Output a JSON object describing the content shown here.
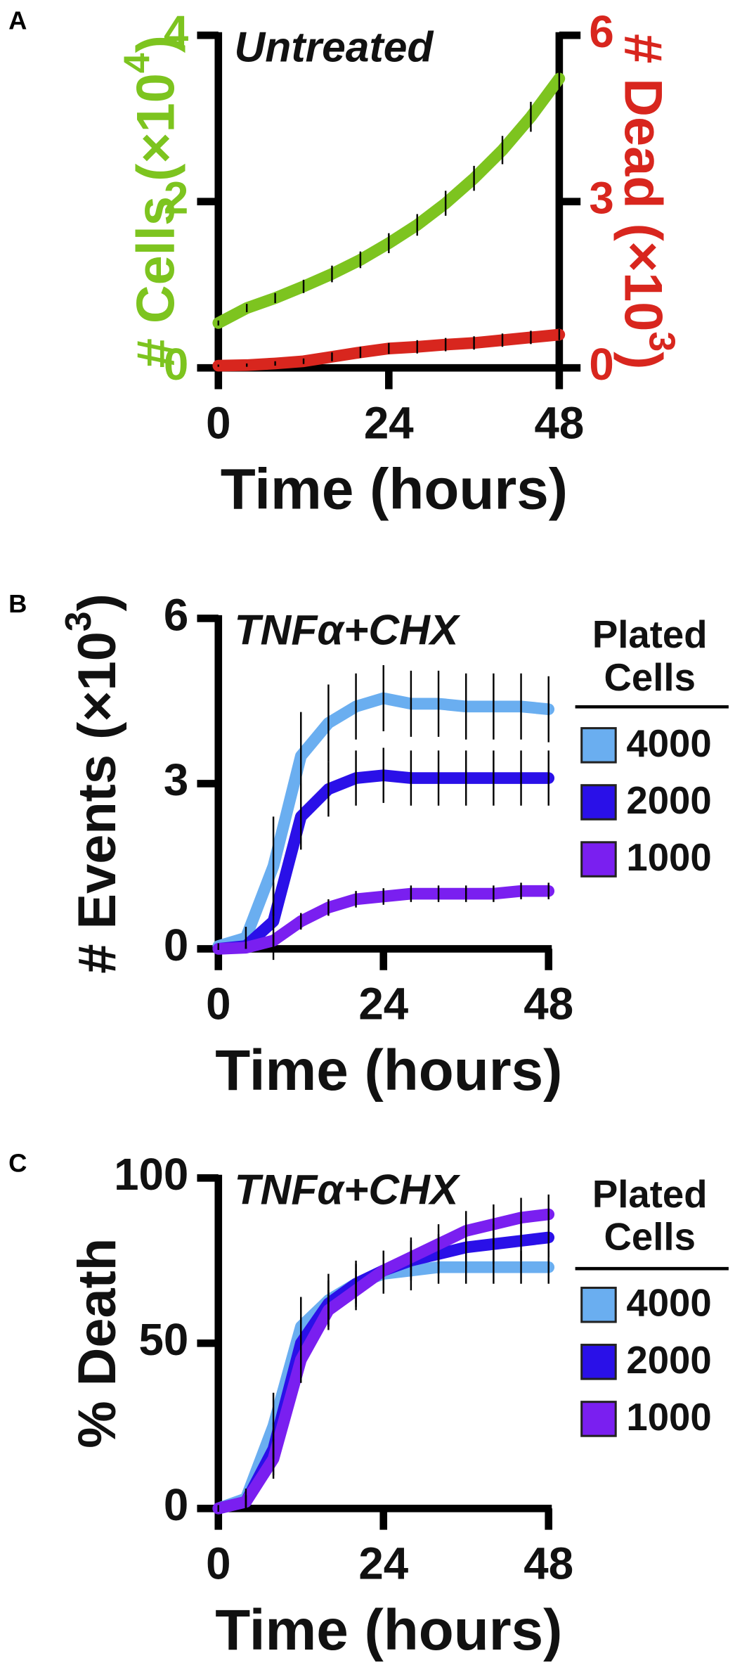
{
  "chart_data": [
    {
      "type": "line",
      "panel_label": "A",
      "title": "Untreated",
      "x": [
        0,
        4,
        8,
        12,
        16,
        20,
        24,
        28,
        32,
        36,
        40,
        44,
        48
      ],
      "xlim": [
        0,
        48
      ],
      "xticks": [
        0,
        24,
        48
      ],
      "xlabel": "Time (hours)",
      "ylim": [
        0,
        4
      ],
      "yticks": [
        0,
        2,
        4
      ],
      "ylabel": {
        "text": "# Cells (×10",
        "sup": "4",
        "end": ")"
      },
      "ycolor": "#7dc41f",
      "y2lim": [
        0,
        6
      ],
      "y2ticks": [
        0,
        3,
        6
      ],
      "y2label": {
        "text": "# Dead (×10",
        "sup": "3",
        "end": ")"
      },
      "y2color": "#d8261e",
      "series": [
        {
          "color": "#7dc41f",
          "values": [
            0.54,
            0.72,
            0.84,
            0.98,
            1.13,
            1.3,
            1.5,
            1.72,
            1.98,
            2.28,
            2.62,
            3.02,
            3.48
          ],
          "errors": [
            0.03,
            0.05,
            0.06,
            0.08,
            0.1,
            0.1,
            0.12,
            0.13,
            0.15,
            0.15,
            0.17,
            0.18,
            0.2
          ]
        },
        {
          "color": "#d8261e",
          "axis": "y2",
          "values": [
            0.04,
            0.05,
            0.08,
            0.12,
            0.2,
            0.28,
            0.35,
            0.38,
            0.42,
            0.45,
            0.5,
            0.55,
            0.6
          ],
          "errors": [
            0.02,
            0.03,
            0.04,
            0.05,
            0.08,
            0.1,
            0.1,
            0.12,
            0.12,
            0.12,
            0.12,
            0.12,
            0.1
          ]
        }
      ]
    },
    {
      "type": "line",
      "panel_label": "B",
      "title": "TNFα+CHX",
      "x": [
        0,
        4,
        8,
        12,
        16,
        20,
        24,
        28,
        32,
        36,
        40,
        44,
        48
      ],
      "xlim": [
        0,
        48
      ],
      "xticks": [
        0,
        24,
        48
      ],
      "xlabel": "Time (hours)",
      "ylim": [
        0,
        6
      ],
      "yticks": [
        0,
        3,
        6
      ],
      "ylabel": {
        "text": "# Events (×10",
        "sup": "3",
        "end": ")"
      },
      "legend_title": [
        "Plated",
        "Cells"
      ],
      "series": [
        {
          "name": "4000",
          "color": "#6aaef0",
          "values": [
            0.05,
            0.2,
            1.5,
            3.5,
            4.1,
            4.4,
            4.55,
            4.45,
            4.45,
            4.4,
            4.4,
            4.4,
            4.35
          ],
          "errors": [
            0.05,
            0.2,
            0.9,
            0.8,
            0.7,
            0.6,
            0.6,
            0.6,
            0.6,
            0.6,
            0.6,
            0.6,
            0.6
          ]
        },
        {
          "name": "2000",
          "color": "#2a10e8",
          "values": [
            0,
            0.05,
            0.5,
            2.4,
            2.9,
            3.1,
            3.15,
            3.1,
            3.1,
            3.1,
            3.1,
            3.1,
            3.1
          ],
          "errors": [
            0.02,
            0.05,
            0.7,
            0.6,
            0.5,
            0.5,
            0.5,
            0.5,
            0.5,
            0.5,
            0.5,
            0.5,
            0.5
          ]
        },
        {
          "name": "1000",
          "color": "#7a1ff0",
          "values": [
            0,
            0.02,
            0.15,
            0.5,
            0.75,
            0.9,
            0.95,
            1.0,
            1.0,
            1.0,
            1.0,
            1.05,
            1.05
          ],
          "errors": [
            0.01,
            0.02,
            0.1,
            0.15,
            0.15,
            0.15,
            0.15,
            0.15,
            0.15,
            0.15,
            0.15,
            0.15,
            0.15
          ]
        }
      ]
    },
    {
      "type": "line",
      "panel_label": "C",
      "title": "TNFα+CHX",
      "x": [
        0,
        4,
        8,
        12,
        16,
        20,
        24,
        28,
        32,
        36,
        40,
        44,
        48
      ],
      "xlim": [
        0,
        48
      ],
      "xticks": [
        0,
        24,
        48
      ],
      "xlabel": "Time (hours)",
      "ylim": [
        0,
        100
      ],
      "yticks": [
        0,
        50,
        100
      ],
      "ylabel": {
        "text": "% Death"
      },
      "legend_title": [
        "Plated",
        "Cells"
      ],
      "series": [
        {
          "name": "4000",
          "color": "#6aaef0",
          "values": [
            0,
            3,
            25,
            55,
            63,
            68,
            71,
            72,
            73,
            73,
            73,
            73,
            73
          ],
          "errors": [
            1,
            3,
            10,
            9,
            8,
            7,
            6,
            6,
            5,
            5,
            5,
            5,
            5
          ]
        },
        {
          "name": "2000",
          "color": "#2a10e8",
          "values": [
            0,
            2,
            18,
            50,
            62,
            68,
            72,
            75,
            77,
            79,
            80,
            81,
            82
          ],
          "errors": [
            1,
            2,
            8,
            8,
            7,
            6,
            6,
            6,
            6,
            6,
            6,
            6,
            6
          ]
        },
        {
          "name": "1000",
          "color": "#7a1ff0",
          "values": [
            0,
            2,
            15,
            45,
            60,
            66,
            72,
            76,
            80,
            84,
            86,
            88,
            89
          ],
          "errors": [
            1,
            2,
            6,
            7,
            6,
            6,
            6,
            6,
            6,
            6,
            6,
            6,
            6
          ]
        }
      ]
    }
  ]
}
